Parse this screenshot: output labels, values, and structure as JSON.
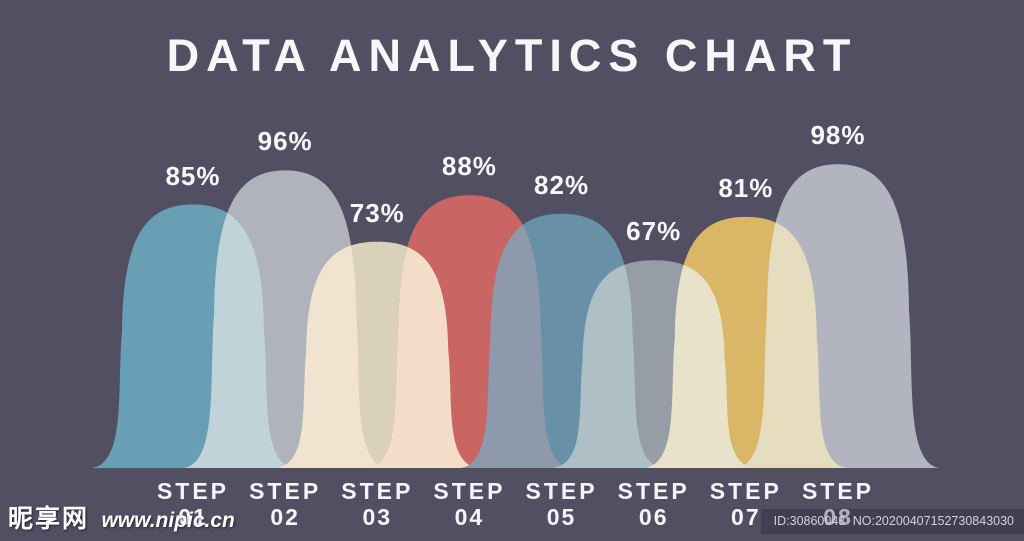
{
  "title": "DATA ANALYTICS CHART",
  "chart_data": {
    "type": "area",
    "subtype": "overlapping-dome-infographic",
    "title": "DATA ANALYTICS CHART",
    "categories": [
      "STEP 01",
      "STEP 02",
      "STEP 03",
      "STEP 04",
      "STEP 05",
      "STEP 06",
      "STEP 07",
      "STEP 08"
    ],
    "values": [
      85,
      96,
      73,
      88,
      82,
      67,
      81,
      98
    ],
    "value_unit": "%",
    "value_labels": [
      "85%",
      "96%",
      "73%",
      "88%",
      "82%",
      "67%",
      "81%",
      "98%"
    ],
    "ylim": [
      0,
      100
    ],
    "grid": false,
    "legend": false,
    "colors": {
      "background": "#524F63",
      "title_text": "#F7F6F9",
      "label_text": "#F5F4F8",
      "domes": [
        "#699FB5",
        "#B0B3BC",
        "#DAD1BA",
        "#C96663",
        "#6891A8",
        "#969DA6",
        "#D9B766",
        "#B2B5BF"
      ],
      "overlaps": [
        "#C0D3D9",
        "#F0E4D1",
        "#F4DDC8",
        "#8E9AAC",
        "#AEC0C6",
        "#E9E2CB",
        "#E5DDBE"
      ]
    }
  },
  "watermarks": {
    "left": {
      "site_name": "昵享网",
      "site_url": "www.nipic.cn"
    },
    "right": {
      "id_text": "ID:30860043",
      "no_text": "NO:20200407152730843030"
    }
  }
}
